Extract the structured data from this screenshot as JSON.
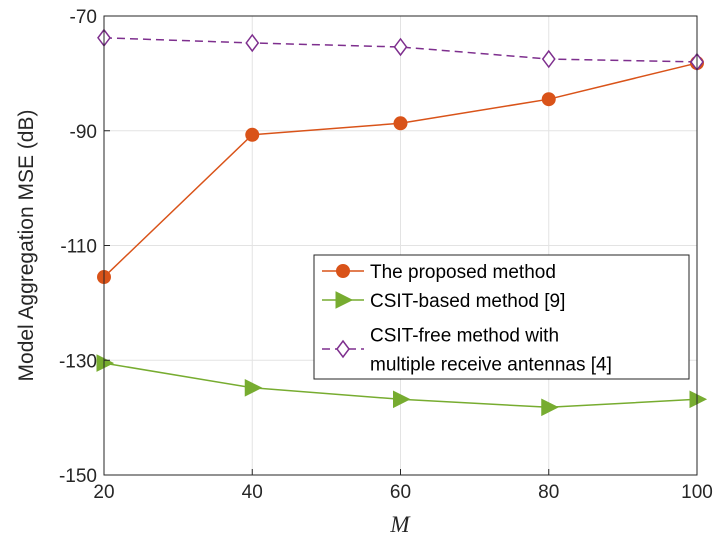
{
  "chart_data": {
    "type": "line",
    "title": "",
    "xlabel": "M",
    "ylabel": "Model Aggregation MSE (dB)",
    "x": [
      20,
      40,
      60,
      80,
      100
    ],
    "xlim": [
      20,
      100
    ],
    "ylim": [
      -150,
      -70
    ],
    "xticks": [
      "20",
      "40",
      "60",
      "80",
      "100"
    ],
    "yticks": [
      "-70",
      "-90",
      "-110",
      "-130",
      "-150"
    ],
    "grid": true,
    "legend_position": "lower-right",
    "series": [
      {
        "name": "The proposed method",
        "values": [
          -115.5,
          -90.7,
          -88.7,
          -84.5,
          -78.2
        ],
        "color": "#D95319",
        "marker": "circle",
        "linestyle": "solid"
      },
      {
        "name": "CSIT-based method [9]",
        "values": [
          -130.5,
          -134.8,
          -136.8,
          -138.2,
          -136.8
        ],
        "color": "#77AC30",
        "marker": "triangle-right",
        "linestyle": "solid"
      },
      {
        "name": "CSIT-free method with multiple receive antennas [4]",
        "legend_lines": [
          "CSIT-free method with",
          "multiple receive antennas [4]"
        ],
        "values": [
          -73.8,
          -74.7,
          -75.4,
          -77.5,
          -78.0
        ],
        "color": "#7E2F8E",
        "marker": "diamond",
        "linestyle": "dashed"
      }
    ]
  }
}
